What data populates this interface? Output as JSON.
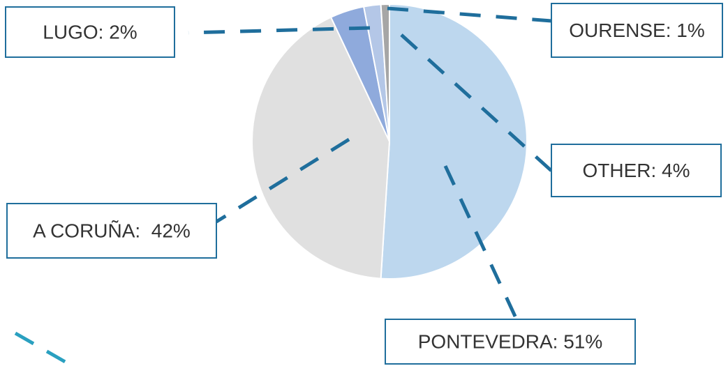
{
  "chart_data": {
    "type": "pie",
    "values": [
      51,
      42,
      4,
      2,
      1
    ],
    "value_labels": [
      "PONTEVEDRA: 51%",
      "A CORUÑA:  42%",
      "OTHER: 4%",
      "LUGO: 2%",
      "OURENSE: 1%"
    ],
    "colors": [
      "#bdd7ee",
      "#e0e0e0",
      "#8faadc",
      "#b4c7e7",
      "#a6a6a6"
    ]
  }
}
